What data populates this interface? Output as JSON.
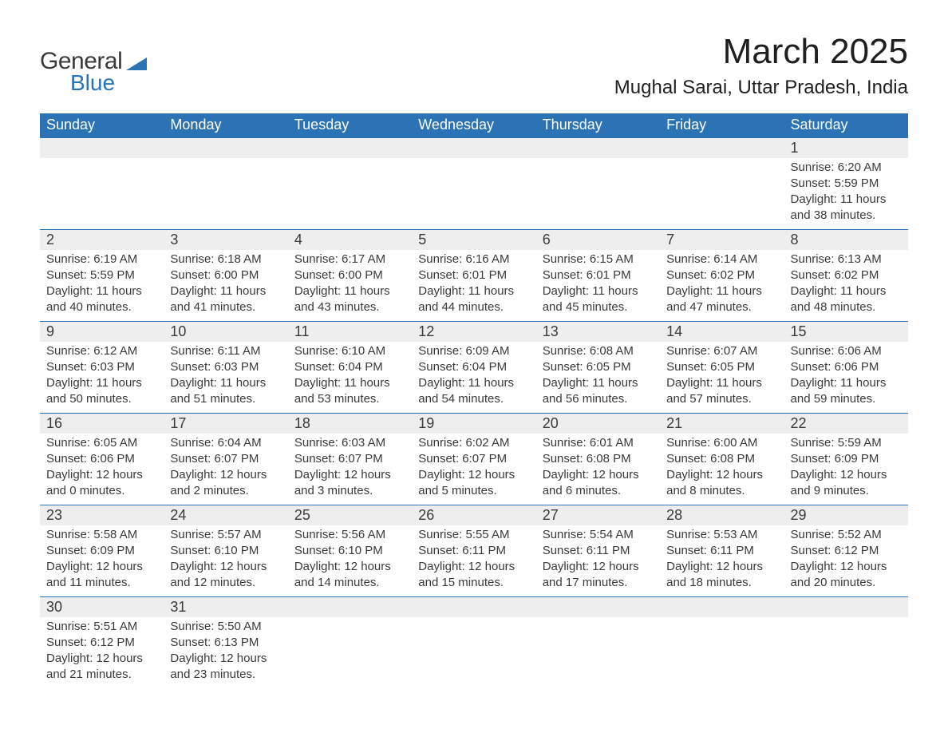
{
  "logo": {
    "name": "General",
    "sub": "Blue",
    "shape_color": "#2b73b5"
  },
  "title": "March 2025",
  "location": "Mughal Sarai, Uttar Pradesh, India",
  "calendar": {
    "header_bg": "#2b73b5",
    "header_fg": "#ffffff",
    "daynum_bg": "#eeeeee",
    "rule_color": "#2b73b5",
    "text_color": "#3a3a3a",
    "font_family": "Arial",
    "columns": [
      "Sunday",
      "Monday",
      "Tuesday",
      "Wednesday",
      "Thursday",
      "Friday",
      "Saturday"
    ],
    "weeks": [
      [
        null,
        null,
        null,
        null,
        null,
        null,
        {
          "n": "1",
          "sr": "Sunrise: 6:20 AM",
          "ss": "Sunset: 5:59 PM",
          "d1": "Daylight: 11 hours",
          "d2": "and 38 minutes."
        }
      ],
      [
        {
          "n": "2",
          "sr": "Sunrise: 6:19 AM",
          "ss": "Sunset: 5:59 PM",
          "d1": "Daylight: 11 hours",
          "d2": "and 40 minutes."
        },
        {
          "n": "3",
          "sr": "Sunrise: 6:18 AM",
          "ss": "Sunset: 6:00 PM",
          "d1": "Daylight: 11 hours",
          "d2": "and 41 minutes."
        },
        {
          "n": "4",
          "sr": "Sunrise: 6:17 AM",
          "ss": "Sunset: 6:00 PM",
          "d1": "Daylight: 11 hours",
          "d2": "and 43 minutes."
        },
        {
          "n": "5",
          "sr": "Sunrise: 6:16 AM",
          "ss": "Sunset: 6:01 PM",
          "d1": "Daylight: 11 hours",
          "d2": "and 44 minutes."
        },
        {
          "n": "6",
          "sr": "Sunrise: 6:15 AM",
          "ss": "Sunset: 6:01 PM",
          "d1": "Daylight: 11 hours",
          "d2": "and 45 minutes."
        },
        {
          "n": "7",
          "sr": "Sunrise: 6:14 AM",
          "ss": "Sunset: 6:02 PM",
          "d1": "Daylight: 11 hours",
          "d2": "and 47 minutes."
        },
        {
          "n": "8",
          "sr": "Sunrise: 6:13 AM",
          "ss": "Sunset: 6:02 PM",
          "d1": "Daylight: 11 hours",
          "d2": "and 48 minutes."
        }
      ],
      [
        {
          "n": "9",
          "sr": "Sunrise: 6:12 AM",
          "ss": "Sunset: 6:03 PM",
          "d1": "Daylight: 11 hours",
          "d2": "and 50 minutes."
        },
        {
          "n": "10",
          "sr": "Sunrise: 6:11 AM",
          "ss": "Sunset: 6:03 PM",
          "d1": "Daylight: 11 hours",
          "d2": "and 51 minutes."
        },
        {
          "n": "11",
          "sr": "Sunrise: 6:10 AM",
          "ss": "Sunset: 6:04 PM",
          "d1": "Daylight: 11 hours",
          "d2": "and 53 minutes."
        },
        {
          "n": "12",
          "sr": "Sunrise: 6:09 AM",
          "ss": "Sunset: 6:04 PM",
          "d1": "Daylight: 11 hours",
          "d2": "and 54 minutes."
        },
        {
          "n": "13",
          "sr": "Sunrise: 6:08 AM",
          "ss": "Sunset: 6:05 PM",
          "d1": "Daylight: 11 hours",
          "d2": "and 56 minutes."
        },
        {
          "n": "14",
          "sr": "Sunrise: 6:07 AM",
          "ss": "Sunset: 6:05 PM",
          "d1": "Daylight: 11 hours",
          "d2": "and 57 minutes."
        },
        {
          "n": "15",
          "sr": "Sunrise: 6:06 AM",
          "ss": "Sunset: 6:06 PM",
          "d1": "Daylight: 11 hours",
          "d2": "and 59 minutes."
        }
      ],
      [
        {
          "n": "16",
          "sr": "Sunrise: 6:05 AM",
          "ss": "Sunset: 6:06 PM",
          "d1": "Daylight: 12 hours",
          "d2": "and 0 minutes."
        },
        {
          "n": "17",
          "sr": "Sunrise: 6:04 AM",
          "ss": "Sunset: 6:07 PM",
          "d1": "Daylight: 12 hours",
          "d2": "and 2 minutes."
        },
        {
          "n": "18",
          "sr": "Sunrise: 6:03 AM",
          "ss": "Sunset: 6:07 PM",
          "d1": "Daylight: 12 hours",
          "d2": "and 3 minutes."
        },
        {
          "n": "19",
          "sr": "Sunrise: 6:02 AM",
          "ss": "Sunset: 6:07 PM",
          "d1": "Daylight: 12 hours",
          "d2": "and 5 minutes."
        },
        {
          "n": "20",
          "sr": "Sunrise: 6:01 AM",
          "ss": "Sunset: 6:08 PM",
          "d1": "Daylight: 12 hours",
          "d2": "and 6 minutes."
        },
        {
          "n": "21",
          "sr": "Sunrise: 6:00 AM",
          "ss": "Sunset: 6:08 PM",
          "d1": "Daylight: 12 hours",
          "d2": "and 8 minutes."
        },
        {
          "n": "22",
          "sr": "Sunrise: 5:59 AM",
          "ss": "Sunset: 6:09 PM",
          "d1": "Daylight: 12 hours",
          "d2": "and 9 minutes."
        }
      ],
      [
        {
          "n": "23",
          "sr": "Sunrise: 5:58 AM",
          "ss": "Sunset: 6:09 PM",
          "d1": "Daylight: 12 hours",
          "d2": "and 11 minutes."
        },
        {
          "n": "24",
          "sr": "Sunrise: 5:57 AM",
          "ss": "Sunset: 6:10 PM",
          "d1": "Daylight: 12 hours",
          "d2": "and 12 minutes."
        },
        {
          "n": "25",
          "sr": "Sunrise: 5:56 AM",
          "ss": "Sunset: 6:10 PM",
          "d1": "Daylight: 12 hours",
          "d2": "and 14 minutes."
        },
        {
          "n": "26",
          "sr": "Sunrise: 5:55 AM",
          "ss": "Sunset: 6:11 PM",
          "d1": "Daylight: 12 hours",
          "d2": "and 15 minutes."
        },
        {
          "n": "27",
          "sr": "Sunrise: 5:54 AM",
          "ss": "Sunset: 6:11 PM",
          "d1": "Daylight: 12 hours",
          "d2": "and 17 minutes."
        },
        {
          "n": "28",
          "sr": "Sunrise: 5:53 AM",
          "ss": "Sunset: 6:11 PM",
          "d1": "Daylight: 12 hours",
          "d2": "and 18 minutes."
        },
        {
          "n": "29",
          "sr": "Sunrise: 5:52 AM",
          "ss": "Sunset: 6:12 PM",
          "d1": "Daylight: 12 hours",
          "d2": "and 20 minutes."
        }
      ],
      [
        {
          "n": "30",
          "sr": "Sunrise: 5:51 AM",
          "ss": "Sunset: 6:12 PM",
          "d1": "Daylight: 12 hours",
          "d2": "and 21 minutes."
        },
        {
          "n": "31",
          "sr": "Sunrise: 5:50 AM",
          "ss": "Sunset: 6:13 PM",
          "d1": "Daylight: 12 hours",
          "d2": "and 23 minutes."
        },
        null,
        null,
        null,
        null,
        null
      ]
    ]
  }
}
